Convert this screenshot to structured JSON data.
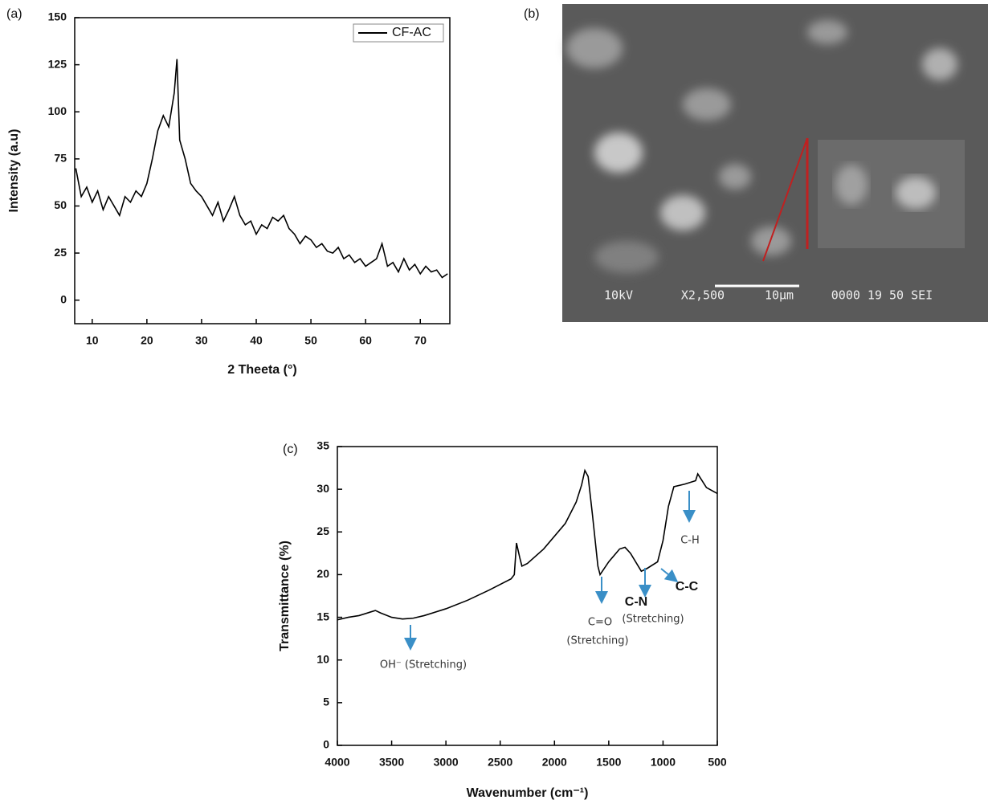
{
  "chart_data": [
    {
      "type": "line",
      "panel_label": "(a)",
      "xlabel": "2 Theeta (°)",
      "ylabel": "Intensity (a.u)",
      "xlim": [
        6.8,
        75.4
      ],
      "ylim": [
        -12.5,
        150
      ],
      "xticks": [
        10,
        20,
        30,
        40,
        50,
        60,
        70
      ],
      "yticks": [
        0,
        25,
        50,
        75,
        100,
        125,
        150
      ],
      "legend": "upper right",
      "x": [
        7,
        8,
        9,
        10,
        11,
        12,
        13,
        14,
        15,
        16,
        17,
        18,
        19,
        20,
        21,
        22,
        23,
        24,
        25,
        25.5,
        26,
        27,
        28,
        29,
        30,
        31,
        32,
        33,
        34,
        35,
        36,
        37,
        38,
        39,
        40,
        41,
        42,
        43,
        44,
        45,
        46,
        47,
        48,
        49,
        50,
        51,
        52,
        53,
        54,
        55,
        56,
        57,
        58,
        59,
        60,
        61,
        62,
        63,
        64,
        65,
        66,
        67,
        68,
        69,
        70,
        71,
        72,
        73,
        74,
        75
      ],
      "series": [
        {
          "name": "CF-AC",
          "color": "#000000",
          "values": [
            70,
            55,
            60,
            52,
            58,
            48,
            55,
            50,
            45,
            55,
            52,
            58,
            55,
            62,
            75,
            90,
            98,
            92,
            110,
            128,
            85,
            75,
            62,
            58,
            55,
            50,
            45,
            52,
            42,
            48,
            55,
            45,
            40,
            42,
            35,
            40,
            38,
            44,
            42,
            45,
            38,
            35,
            30,
            34,
            32,
            28,
            30,
            26,
            25,
            28,
            22,
            24,
            20,
            22,
            18,
            20,
            22,
            30,
            18,
            20,
            15,
            22,
            16,
            19,
            14,
            18,
            15,
            16,
            12,
            14
          ]
        }
      ]
    },
    {
      "type": "line",
      "panel_label": "(c)",
      "xlabel": "Wavenumber (cm⁻¹)",
      "ylabel": "Transmittance (%)",
      "xlim": [
        4000,
        500
      ],
      "ylim": [
        0,
        35
      ],
      "xticks": [
        4000,
        3500,
        3000,
        2500,
        2000,
        1500,
        1000,
        500
      ],
      "yticks": [
        0,
        5,
        10,
        15,
        20,
        25,
        30,
        35
      ],
      "x": [
        4000,
        3900,
        3800,
        3700,
        3650,
        3600,
        3500,
        3400,
        3300,
        3200,
        3000,
        2800,
        2600,
        2400,
        2370,
        2350,
        2320,
        2300,
        2250,
        2100,
        1900,
        1800,
        1750,
        1720,
        1690,
        1650,
        1600,
        1580,
        1500,
        1400,
        1350,
        1300,
        1200,
        1150,
        1050,
        1000,
        950,
        900,
        800,
        700,
        680,
        600,
        500
      ],
      "series": [
        {
          "color": "#000000",
          "values": [
            14.7,
            15,
            15.2,
            15.6,
            15.8,
            15.5,
            15,
            14.8,
            14.9,
            15.2,
            16,
            17,
            18.2,
            19.5,
            20,
            23.7,
            22,
            21,
            21.3,
            23,
            26,
            28.5,
            30.5,
            32.2,
            31.5,
            27,
            21,
            20,
            21.5,
            23,
            23.2,
            22.5,
            20.4,
            20.7,
            21.5,
            24,
            28,
            30.3,
            30.6,
            31,
            31.8,
            30.2,
            29.5
          ]
        }
      ],
      "annotations": [
        "OH⁻ (Stretching)",
        "C=O",
        "(Stretching)",
        "C-N",
        "(Stretching)",
        "C-C",
        "C-H"
      ]
    }
  ],
  "image": {
    "panel_label": "(b)",
    "caption": [
      "10kV",
      "X2,500",
      "10μm",
      "0000 19 50 SEI"
    ]
  }
}
